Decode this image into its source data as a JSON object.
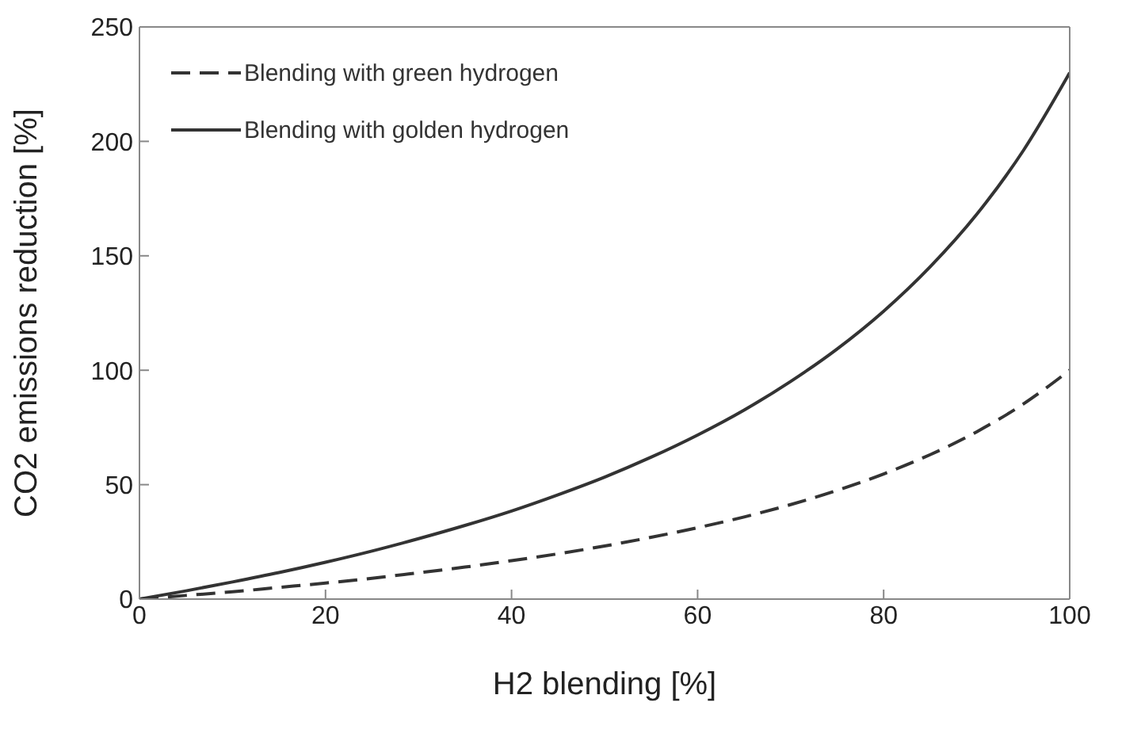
{
  "chart_data": {
    "type": "line",
    "xlabel": "H2 blending [%]",
    "ylabel": "CO2 emissions reduction [%]",
    "x": [
      0,
      5,
      10,
      15,
      20,
      25,
      30,
      35,
      40,
      45,
      50,
      55,
      60,
      65,
      70,
      75,
      80,
      85,
      90,
      95,
      100
    ],
    "series": [
      {
        "name": "Blending with green hydrogen",
        "color": "#333333",
        "line_style": "dashed",
        "values": [
          0,
          1.6,
          3.2,
          5.1,
          7.0,
          9.1,
          11.5,
          14.0,
          16.8,
          19.8,
          23.2,
          27.0,
          31.2,
          35.9,
          41.3,
          47.5,
          54.7,
          63.1,
          73.1,
          85.2,
          100
        ]
      },
      {
        "name": "Blending with golden hydrogen",
        "color": "#333333",
        "line_style": "solid",
        "values": [
          0,
          3.6,
          7.5,
          11.6,
          16.1,
          21.0,
          26.4,
          32.2,
          38.5,
          45.6,
          53.3,
          62.0,
          71.7,
          82.6,
          95.1,
          109.3,
          125.8,
          145.2,
          168.1,
          195.9,
          230
        ]
      }
    ],
    "xlim": [
      0,
      100
    ],
    "xticks": [
      0,
      20,
      40,
      60,
      80,
      100
    ],
    "ylim": [
      0,
      250
    ],
    "yticks": [
      0,
      50,
      100,
      150,
      200,
      250
    ],
    "legend": "top left",
    "marker": "none",
    "grid": false
  }
}
